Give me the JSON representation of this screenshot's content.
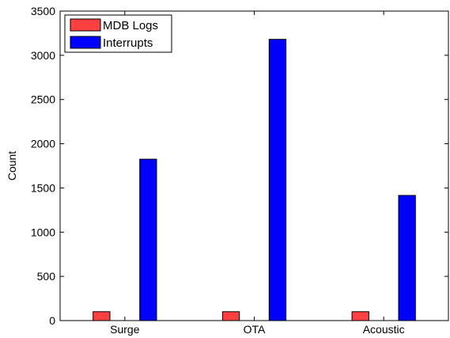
{
  "chart_data": {
    "type": "bar",
    "title": "",
    "xlabel": "",
    "ylabel": "Count",
    "categories": [
      "Surge",
      "OTA",
      "Acoustic"
    ],
    "series": [
      {
        "name": "MDB Logs",
        "color": "#ff4040",
        "values": [
          100,
          100,
          100
        ]
      },
      {
        "name": "Interrupts",
        "color": "#0000ff",
        "values": [
          1825,
          3180,
          1415
        ]
      }
    ],
    "ylim": [
      0,
      3500
    ],
    "yticks": [
      0,
      500,
      1000,
      1500,
      2000,
      2500,
      3000,
      3500
    ],
    "ytick_labels": [
      "0",
      "500",
      "1000",
      "1500",
      "2000",
      "2500",
      "3000",
      "3500"
    ],
    "grid": false,
    "legend_position": "top-left"
  }
}
